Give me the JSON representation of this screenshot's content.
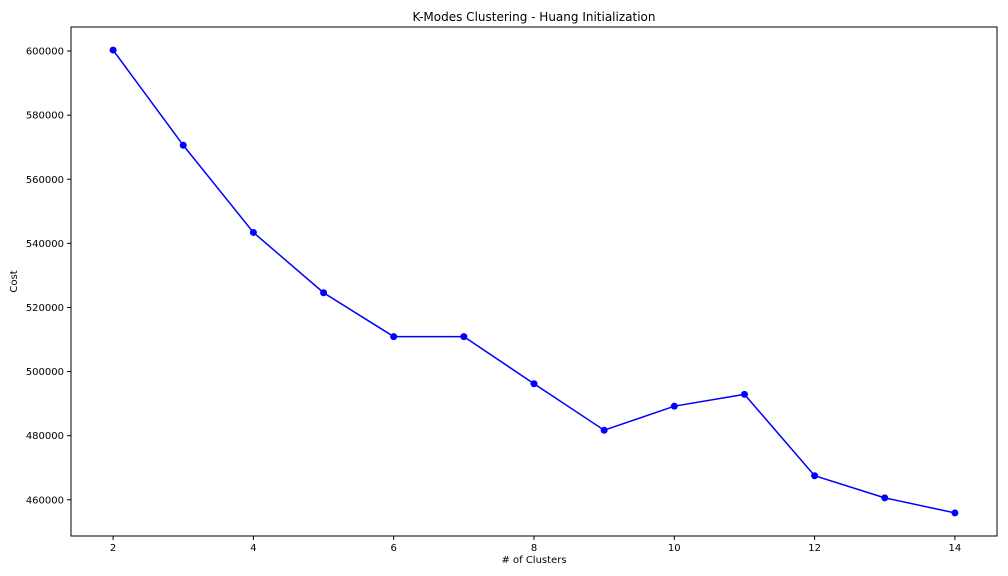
{
  "chart_data": {
    "type": "line",
    "title": "K-Modes Clustering - Huang Initialization",
    "xlabel": "# of Clusters",
    "ylabel": "Cost",
    "x": [
      2,
      3,
      4,
      5,
      6,
      7,
      8,
      9,
      10,
      11,
      12,
      13,
      14
    ],
    "series": [
      {
        "values": [
          600300,
          570600,
          543400,
          524600,
          510900,
          510900,
          496200,
          481700,
          489200,
          492900,
          467500,
          460600,
          455900
        ],
        "color": "#0000ff",
        "marker": "circle"
      }
    ],
    "xlim": [
      1.4,
      14.6
    ],
    "ylim": [
      448700,
      607500
    ],
    "xticks": [
      2,
      4,
      6,
      8,
      10,
      12,
      14
    ],
    "yticks": [
      460000,
      480000,
      500000,
      520000,
      540000,
      560000,
      580000,
      600000
    ],
    "xtick_labels": [
      "2",
      "4",
      "6",
      "8",
      "10",
      "12",
      "14"
    ],
    "ytick_labels": [
      "460000",
      "480000",
      "500000",
      "520000",
      "540000",
      "560000",
      "580000",
      "600000"
    ],
    "grid": false,
    "legend": false
  }
}
